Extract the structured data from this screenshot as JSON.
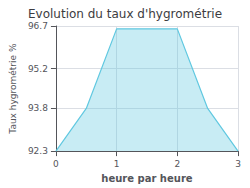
{
  "chart_data": {
    "type": "area",
    "title": "Evolution du taux d'hygrométrie",
    "xlabel": "heure par heure",
    "ylabel": "Taux hygrométrie %",
    "x": [
      0,
      0.5,
      1,
      2,
      2.5,
      3
    ],
    "values": [
      92.3,
      93.8,
      96.6,
      96.6,
      93.8,
      92.3
    ],
    "color": "#60c8e0",
    "xlim": [
      0,
      3
    ],
    "xticks": [
      0,
      1,
      2,
      3
    ],
    "ylim": [
      92.3,
      96.7
    ],
    "yticks": [
      92.3,
      93.8,
      95.2,
      96.7
    ],
    "grid": true
  }
}
